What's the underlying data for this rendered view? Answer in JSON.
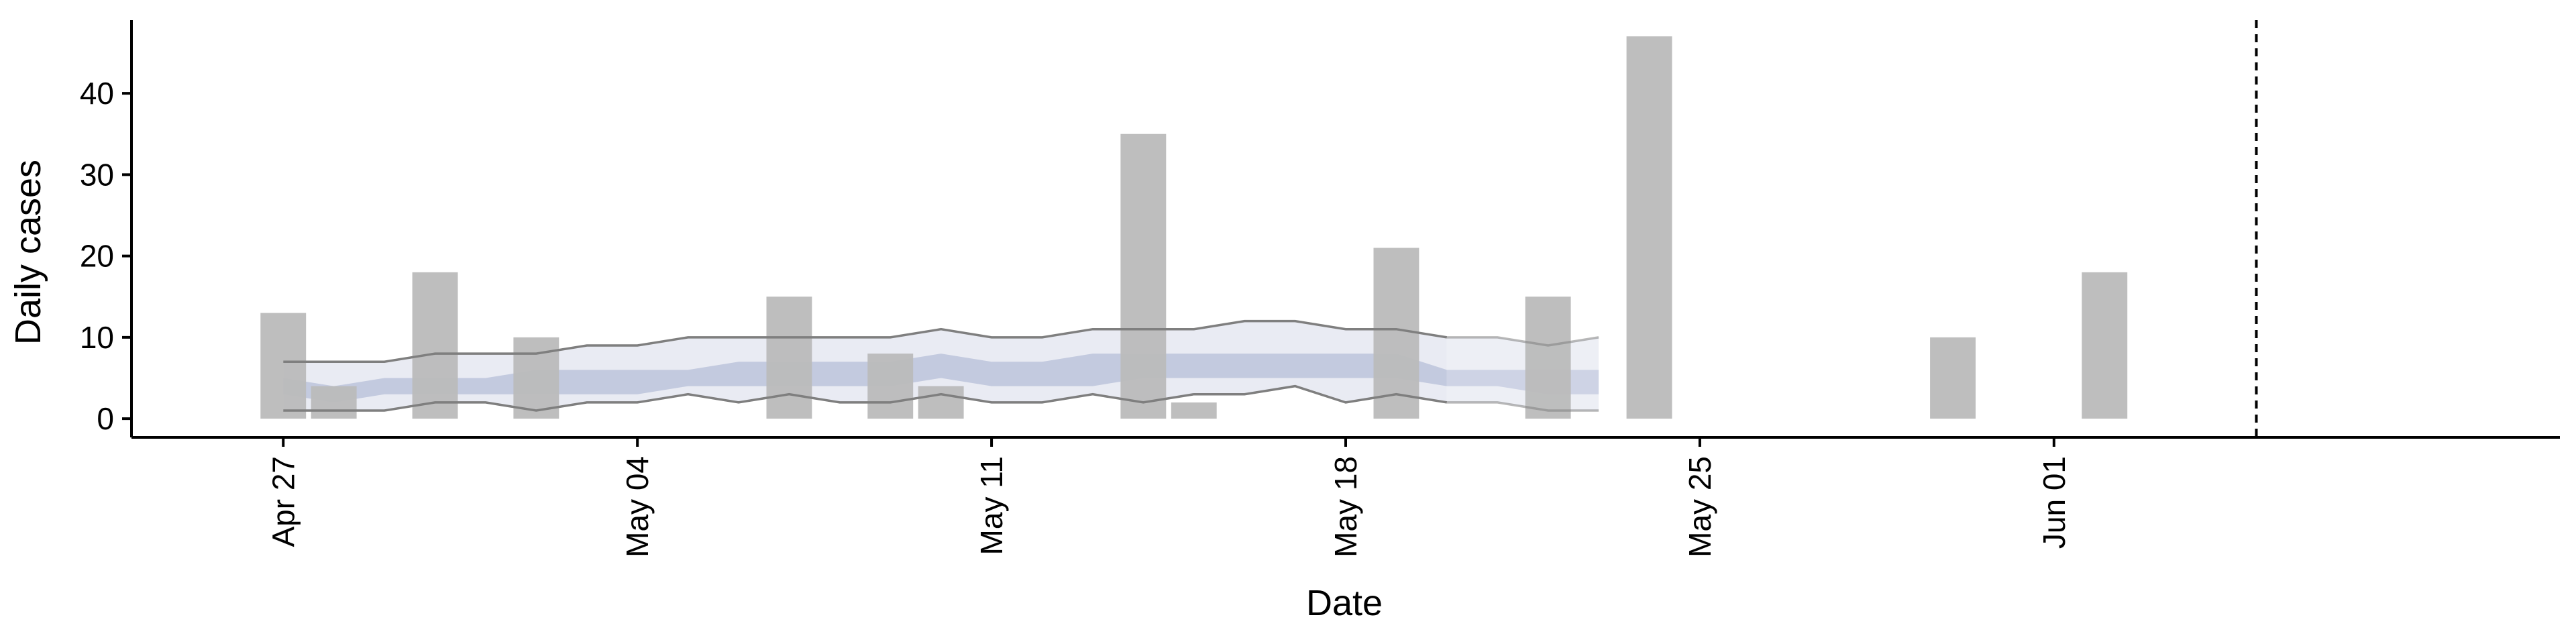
{
  "chart_data": {
    "type": "bar",
    "xlabel": "Date",
    "ylabel": "Daily cases",
    "x_ticks": [
      {
        "date": "2020-04-27",
        "label": "Apr 27"
      },
      {
        "date": "2020-05-04",
        "label": "May 04"
      },
      {
        "date": "2020-05-11",
        "label": "May 11"
      },
      {
        "date": "2020-05-18",
        "label": "May 18"
      },
      {
        "date": "2020-05-25",
        "label": "May 25"
      },
      {
        "date": "2020-06-01",
        "label": "Jun 01"
      }
    ],
    "y_ticks": [
      0,
      10,
      20,
      30,
      40
    ],
    "xlim": [
      "2020-04-24",
      "2020-06-11"
    ],
    "ylim": [
      -2.3,
      49
    ],
    "vline_date": "2020-06-05",
    "bars": [
      {
        "date": "2020-04-27",
        "value": 13
      },
      {
        "date": "2020-04-28",
        "value": 4
      },
      {
        "date": "2020-04-30",
        "value": 18
      },
      {
        "date": "2020-05-02",
        "value": 10
      },
      {
        "date": "2020-05-07",
        "value": 15
      },
      {
        "date": "2020-05-09",
        "value": 8
      },
      {
        "date": "2020-05-10",
        "value": 4
      },
      {
        "date": "2020-05-14",
        "value": 35
      },
      {
        "date": "2020-05-15",
        "value": 2
      },
      {
        "date": "2020-05-19",
        "value": 21
      },
      {
        "date": "2020-05-22",
        "value": 15
      },
      {
        "date": "2020-05-24",
        "value": 47
      },
      {
        "date": "2020-05-30",
        "value": 10
      },
      {
        "date": "2020-06-02",
        "value": 18
      }
    ],
    "estimate": {
      "dates": [
        "2020-04-27",
        "2020-04-28",
        "2020-04-29",
        "2020-04-30",
        "2020-05-01",
        "2020-05-02",
        "2020-05-03",
        "2020-05-04",
        "2020-05-05",
        "2020-05-06",
        "2020-05-07",
        "2020-05-08",
        "2020-05-09",
        "2020-05-10",
        "2020-05-11",
        "2020-05-12",
        "2020-05-13",
        "2020-05-14",
        "2020-05-15",
        "2020-05-16",
        "2020-05-17",
        "2020-05-18",
        "2020-05-19",
        "2020-05-20",
        "2020-05-21",
        "2020-05-22",
        "2020-05-23"
      ],
      "upper": [
        7,
        7,
        7,
        8,
        8,
        8,
        9,
        9,
        10,
        10,
        10,
        10,
        10,
        11,
        10,
        10,
        11,
        11,
        11,
        12,
        12,
        11,
        11,
        10,
        10,
        9,
        10
      ],
      "lower": [
        1,
        1,
        1,
        2,
        2,
        1,
        2,
        2,
        3,
        2,
        3,
        2,
        2,
        3,
        2,
        2,
        3,
        2,
        3,
        3,
        4,
        2,
        3,
        2,
        2,
        1,
        1
      ],
      "inner_upper": [
        5,
        4,
        5,
        5,
        5,
        6,
        6,
        6,
        6,
        7,
        7,
        7,
        7,
        8,
        7,
        7,
        8,
        8,
        8,
        8,
        8,
        8,
        8,
        6,
        6,
        6,
        6
      ],
      "inner_lower": [
        3,
        2,
        3,
        3,
        3,
        3,
        3,
        3,
        4,
        4,
        4,
        4,
        4,
        5,
        4,
        4,
        4,
        5,
        5,
        5,
        5,
        5,
        5,
        4,
        4,
        3,
        3
      ],
      "forecast_from": "2020-05-20"
    },
    "colors": {
      "bars": "#bababa",
      "outer_band": "#e9ebf3",
      "inner_band": "#c3cadf",
      "band_line": "#7f7f7f",
      "vline": "#000000"
    },
    "grid": false,
    "legend": "none"
  }
}
